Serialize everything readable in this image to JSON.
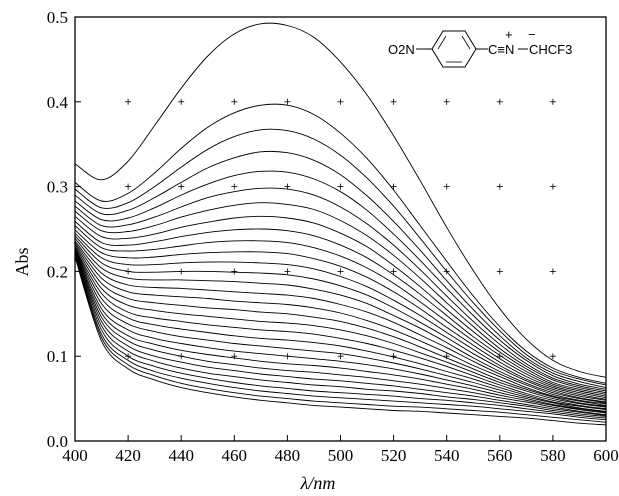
{
  "chart_data": {
    "type": "line",
    "title": "",
    "xlabel": "λ/nm",
    "ylabel": "Abs",
    "xlim": [
      400,
      600
    ],
    "ylim": [
      0.0,
      0.5
    ],
    "x_ticks": [
      "400",
      "420",
      "440",
      "460",
      "480",
      "500",
      "520",
      "540",
      "560",
      "580",
      "600"
    ],
    "y_ticks": [
      "0.0",
      "0.1",
      "0.2",
      "0.3",
      "0.4",
      "0.5"
    ],
    "grid": "cross markers at tick intersections",
    "legend": "none",
    "structure_label": {
      "left_group": "O2N",
      "triple_bond_group": "C≡N",
      "charges": [
        "+",
        "−"
      ],
      "right_group": "CHCF3"
    },
    "x": [
      400,
      410,
      420,
      430,
      440,
      450,
      460,
      470,
      480,
      490,
      500,
      510,
      520,
      530,
      540,
      550,
      560,
      570,
      580,
      590,
      600
    ],
    "series": [
      {
        "values": [
          0.327,
          0.308,
          0.33,
          0.372,
          0.416,
          0.454,
          0.48,
          0.492,
          0.49,
          0.476,
          0.447,
          0.408,
          0.36,
          0.307,
          0.252,
          0.201,
          0.156,
          0.12,
          0.095,
          0.082,
          0.075
        ]
      },
      {
        "values": [
          0.305,
          0.283,
          0.292,
          0.316,
          0.345,
          0.37,
          0.387,
          0.396,
          0.396,
          0.385,
          0.363,
          0.333,
          0.296,
          0.254,
          0.212,
          0.171,
          0.135,
          0.106,
          0.086,
          0.075,
          0.068
        ]
      },
      {
        "values": [
          0.297,
          0.275,
          0.281,
          0.3,
          0.323,
          0.344,
          0.359,
          0.367,
          0.366,
          0.356,
          0.337,
          0.31,
          0.277,
          0.239,
          0.2,
          0.163,
          0.13,
          0.102,
          0.083,
          0.073,
          0.066
        ]
      },
      {
        "values": [
          0.29,
          0.268,
          0.272,
          0.287,
          0.305,
          0.322,
          0.334,
          0.341,
          0.34,
          0.331,
          0.314,
          0.289,
          0.259,
          0.225,
          0.189,
          0.155,
          0.124,
          0.098,
          0.08,
          0.07,
          0.063
        ]
      },
      {
        "values": [
          0.283,
          0.261,
          0.263,
          0.275,
          0.29,
          0.303,
          0.313,
          0.318,
          0.317,
          0.309,
          0.294,
          0.272,
          0.244,
          0.213,
          0.18,
          0.148,
          0.119,
          0.095,
          0.077,
          0.067,
          0.061
        ]
      },
      {
        "values": [
          0.277,
          0.254,
          0.255,
          0.264,
          0.276,
          0.287,
          0.294,
          0.298,
          0.297,
          0.29,
          0.276,
          0.256,
          0.231,
          0.202,
          0.171,
          0.141,
          0.114,
          0.091,
          0.074,
          0.065,
          0.059
        ]
      },
      {
        "values": [
          0.271,
          0.248,
          0.247,
          0.254,
          0.264,
          0.272,
          0.278,
          0.281,
          0.279,
          0.273,
          0.26,
          0.242,
          0.219,
          0.192,
          0.163,
          0.135,
          0.109,
          0.088,
          0.072,
          0.063,
          0.057
        ]
      },
      {
        "values": [
          0.265,
          0.241,
          0.239,
          0.244,
          0.252,
          0.258,
          0.263,
          0.265,
          0.263,
          0.257,
          0.245,
          0.229,
          0.207,
          0.182,
          0.155,
          0.129,
          0.105,
          0.085,
          0.069,
          0.061,
          0.055
        ]
      },
      {
        "values": [
          0.259,
          0.234,
          0.231,
          0.235,
          0.241,
          0.246,
          0.249,
          0.25,
          0.248,
          0.242,
          0.231,
          0.216,
          0.196,
          0.173,
          0.148,
          0.123,
          0.101,
          0.082,
          0.067,
          0.059,
          0.053
        ]
      },
      {
        "values": [
          0.254,
          0.228,
          0.224,
          0.226,
          0.23,
          0.234,
          0.236,
          0.236,
          0.234,
          0.228,
          0.218,
          0.204,
          0.186,
          0.164,
          0.141,
          0.118,
          0.097,
          0.079,
          0.065,
          0.057,
          0.051
        ]
      },
      {
        "values": [
          0.249,
          0.222,
          0.216,
          0.217,
          0.22,
          0.222,
          0.223,
          0.223,
          0.221,
          0.215,
          0.206,
          0.193,
          0.176,
          0.156,
          0.134,
          0.113,
          0.093,
          0.076,
          0.063,
          0.055,
          0.049
        ]
      },
      {
        "values": [
          0.245,
          0.216,
          0.208,
          0.208,
          0.21,
          0.211,
          0.211,
          0.21,
          0.208,
          0.203,
          0.194,
          0.182,
          0.166,
          0.148,
          0.128,
          0.108,
          0.089,
          0.073,
          0.061,
          0.053,
          0.048
        ]
      },
      {
        "values": [
          0.242,
          0.21,
          0.2,
          0.199,
          0.2,
          0.2,
          0.199,
          0.198,
          0.196,
          0.191,
          0.183,
          0.172,
          0.157,
          0.14,
          0.122,
          0.103,
          0.086,
          0.071,
          0.059,
          0.051,
          0.046
        ]
      },
      {
        "values": [
          0.239,
          0.204,
          0.192,
          0.19,
          0.19,
          0.189,
          0.188,
          0.186,
          0.184,
          0.179,
          0.172,
          0.162,
          0.148,
          0.133,
          0.116,
          0.098,
          0.082,
          0.068,
          0.057,
          0.05,
          0.045
        ]
      },
      {
        "values": [
          0.236,
          0.198,
          0.184,
          0.181,
          0.18,
          0.178,
          0.176,
          0.174,
          0.172,
          0.168,
          0.161,
          0.152,
          0.14,
          0.125,
          0.11,
          0.094,
          0.079,
          0.066,
          0.055,
          0.048,
          0.044
        ]
      },
      {
        "values": [
          0.234,
          0.192,
          0.176,
          0.172,
          0.17,
          0.168,
          0.165,
          0.163,
          0.161,
          0.157,
          0.151,
          0.142,
          0.131,
          0.118,
          0.104,
          0.089,
          0.076,
          0.063,
          0.053,
          0.047,
          0.042
        ]
      },
      {
        "values": [
          0.232,
          0.186,
          0.168,
          0.163,
          0.16,
          0.157,
          0.155,
          0.152,
          0.15,
          0.146,
          0.141,
          0.133,
          0.123,
          0.111,
          0.098,
          0.085,
          0.072,
          0.061,
          0.052,
          0.045,
          0.041
        ]
      },
      {
        "values": [
          0.23,
          0.18,
          0.16,
          0.154,
          0.15,
          0.147,
          0.144,
          0.141,
          0.139,
          0.136,
          0.131,
          0.124,
          0.115,
          0.104,
          0.093,
          0.081,
          0.069,
          0.059,
          0.05,
          0.044,
          0.04
        ]
      },
      {
        "values": [
          0.228,
          0.174,
          0.152,
          0.145,
          0.141,
          0.137,
          0.134,
          0.131,
          0.129,
          0.126,
          0.121,
          0.115,
          0.107,
          0.098,
          0.088,
          0.077,
          0.066,
          0.056,
          0.048,
          0.042,
          0.038
        ]
      },
      {
        "values": [
          0.227,
          0.168,
          0.145,
          0.137,
          0.132,
          0.128,
          0.124,
          0.121,
          0.119,
          0.116,
          0.112,
          0.106,
          0.099,
          0.091,
          0.082,
          0.073,
          0.063,
          0.054,
          0.046,
          0.041,
          0.037
        ]
      },
      {
        "values": [
          0.226,
          0.162,
          0.138,
          0.129,
          0.123,
          0.119,
          0.115,
          0.112,
          0.109,
          0.106,
          0.103,
          0.098,
          0.092,
          0.085,
          0.077,
          0.069,
          0.06,
          0.052,
          0.045,
          0.039,
          0.035
        ]
      },
      {
        "values": [
          0.225,
          0.156,
          0.131,
          0.121,
          0.115,
          0.11,
          0.106,
          0.103,
          0.1,
          0.097,
          0.094,
          0.09,
          0.085,
          0.079,
          0.072,
          0.065,
          0.057,
          0.05,
          0.043,
          0.038,
          0.034
        ]
      },
      {
        "values": [
          0.224,
          0.151,
          0.124,
          0.114,
          0.107,
          0.102,
          0.098,
          0.094,
          0.091,
          0.089,
          0.086,
          0.082,
          0.078,
          0.073,
          0.067,
          0.061,
          0.054,
          0.048,
          0.042,
          0.037,
          0.033
        ]
      },
      {
        "values": [
          0.223,
          0.146,
          0.118,
          0.107,
          0.1,
          0.094,
          0.09,
          0.086,
          0.083,
          0.081,
          0.078,
          0.075,
          0.071,
          0.067,
          0.062,
          0.057,
          0.051,
          0.046,
          0.04,
          0.035,
          0.031
        ]
      },
      {
        "values": [
          0.222,
          0.141,
          0.112,
          0.1,
          0.093,
          0.087,
          0.083,
          0.079,
          0.076,
          0.073,
          0.071,
          0.068,
          0.065,
          0.061,
          0.057,
          0.053,
          0.048,
          0.043,
          0.038,
          0.034,
          0.03
        ]
      },
      {
        "values": [
          0.221,
          0.136,
          0.106,
          0.094,
          0.086,
          0.08,
          0.076,
          0.072,
          0.069,
          0.066,
          0.064,
          0.061,
          0.059,
          0.056,
          0.052,
          0.049,
          0.045,
          0.041,
          0.036,
          0.032,
          0.029
        ]
      },
      {
        "values": [
          0.22,
          0.131,
          0.1,
          0.088,
          0.08,
          0.074,
          0.069,
          0.065,
          0.062,
          0.059,
          0.057,
          0.055,
          0.053,
          0.05,
          0.048,
          0.045,
          0.042,
          0.038,
          0.034,
          0.03,
          0.027
        ]
      },
      {
        "values": [
          0.219,
          0.126,
          0.095,
          0.082,
          0.074,
          0.068,
          0.063,
          0.059,
          0.056,
          0.053,
          0.051,
          0.049,
          0.047,
          0.045,
          0.043,
          0.041,
          0.038,
          0.035,
          0.032,
          0.028,
          0.025
        ]
      },
      {
        "values": [
          0.218,
          0.122,
          0.09,
          0.077,
          0.068,
          0.062,
          0.057,
          0.053,
          0.05,
          0.047,
          0.045,
          0.043,
          0.041,
          0.04,
          0.038,
          0.036,
          0.034,
          0.031,
          0.028,
          0.025,
          0.022
        ]
      },
      {
        "values": [
          0.217,
          0.118,
          0.085,
          0.072,
          0.063,
          0.057,
          0.052,
          0.048,
          0.045,
          0.042,
          0.04,
          0.038,
          0.036,
          0.035,
          0.033,
          0.031,
          0.029,
          0.027,
          0.024,
          0.021,
          0.019
        ]
      }
    ]
  }
}
